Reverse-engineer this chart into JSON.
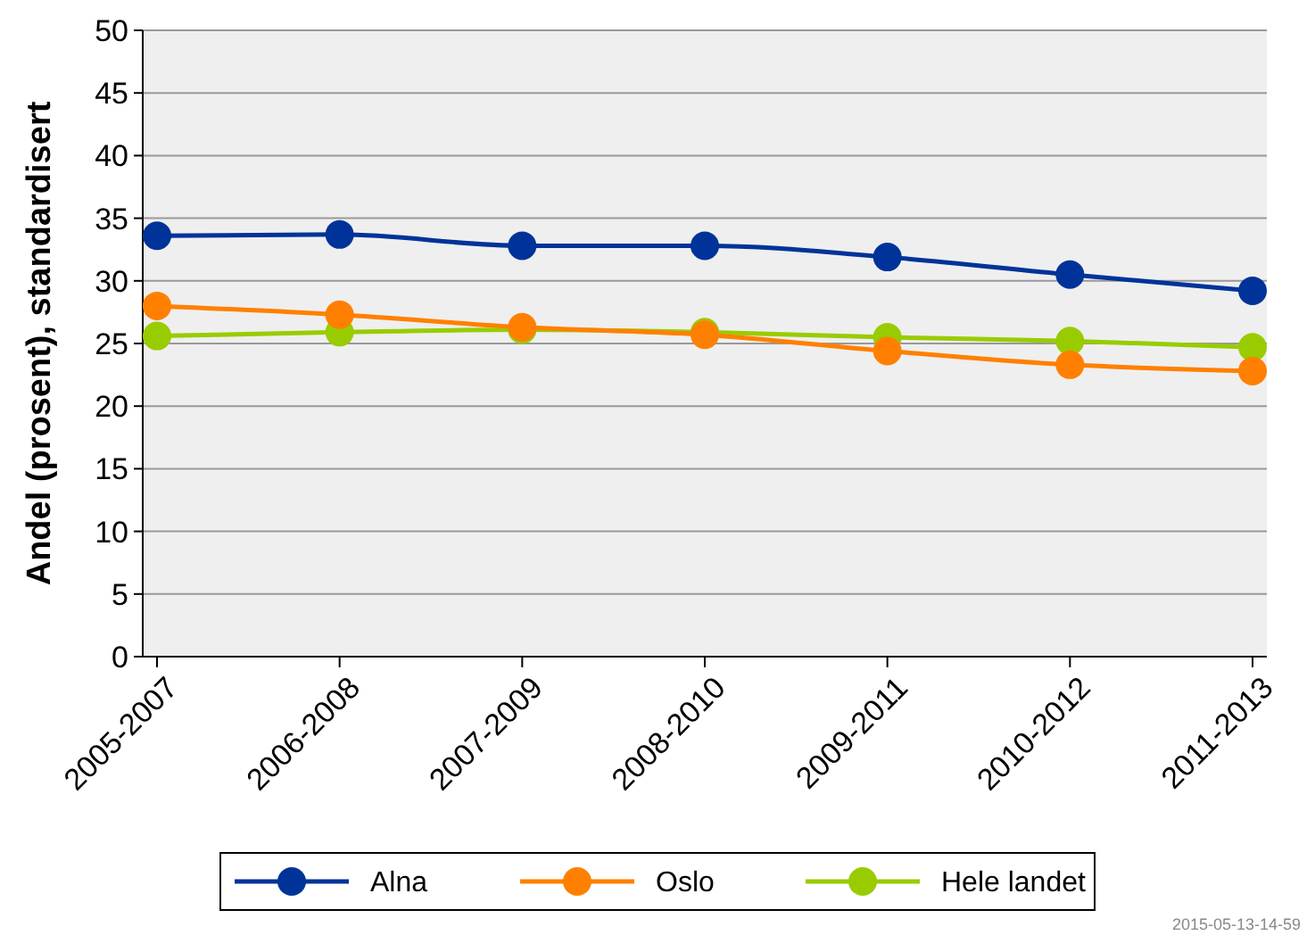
{
  "chart_data": {
    "type": "line",
    "ylabel": "Andel (prosent), standardisert",
    "categories": [
      "2005-2007",
      "2006-2008",
      "2007-2009",
      "2008-2010",
      "2009-2011",
      "2010-2012",
      "2011-2013"
    ],
    "series": [
      {
        "name": "Alna",
        "color": "#003399",
        "values": [
          33.6,
          33.7,
          32.8,
          32.8,
          31.9,
          30.5,
          29.2
        ]
      },
      {
        "name": "Oslo",
        "color": "#ff8000",
        "values": [
          28.0,
          27.3,
          26.3,
          25.7,
          24.4,
          23.3,
          22.8
        ]
      },
      {
        "name": "Hele landet",
        "color": "#99cc00",
        "values": [
          25.6,
          25.9,
          26.1,
          25.9,
          25.5,
          25.2,
          24.7
        ]
      }
    ],
    "ylim": [
      0,
      50
    ],
    "yticks": [
      0,
      5,
      10,
      15,
      20,
      25,
      30,
      35,
      40,
      45,
      50
    ],
    "grid": "y",
    "legend": "bottom",
    "marker": "circle",
    "line_style": "solid",
    "annotations": [
      "2015-05-13-14-59"
    ]
  }
}
